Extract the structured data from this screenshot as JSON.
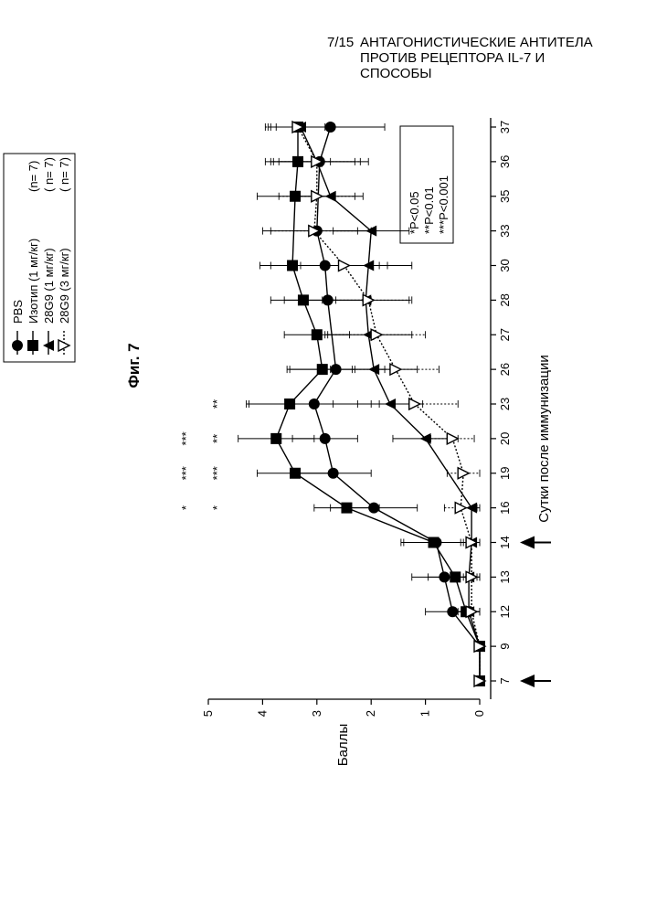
{
  "header": {
    "page_number": "7/15",
    "title": "АНТАГОНИСТИЧЕСКИЕ АНТИТЕЛА ПРОТИВ РЕЦЕПТОРА IL-7 И СПОСОБЫ"
  },
  "chart_data": {
    "type": "line",
    "orientation": "rotated 90° counter-clockwise on page",
    "figure_label": "Фиг. 7",
    "xlabel": "Сутки после иммунизации",
    "ylabel": "Баллы",
    "x_ticks": [
      7,
      9,
      12,
      13,
      14,
      16,
      19,
      20,
      23,
      26,
      27,
      28,
      30,
      33,
      35,
      36,
      37
    ],
    "y_ticks": [
      0,
      1,
      2,
      3,
      4,
      5
    ],
    "ylim": [
      0,
      5
    ],
    "immunization_arrows_days": [
      7,
      14
    ],
    "series": [
      {
        "name": "PBS",
        "n_label": "",
        "marker": "circle-filled",
        "line": "solid",
        "x": [
          7,
          9,
          12,
          13,
          14,
          16,
          19,
          20,
          23,
          26,
          28,
          30,
          33,
          36,
          37
        ],
        "y": [
          0,
          0,
          0.5,
          0.65,
          0.8,
          1.95,
          2.7,
          2.85,
          3.05,
          2.65,
          2.8,
          2.85,
          3.0,
          2.95,
          2.75
        ],
        "err": [
          0,
          0,
          0.5,
          0.6,
          0.6,
          0.8,
          0.7,
          0.6,
          1.2,
          0.9,
          0.8,
          1.0,
          1.0,
          0.9,
          1.0
        ]
      },
      {
        "name": "Изотип (1 мг/кг)",
        "n_label": "(n= 7)",
        "marker": "square-filled",
        "line": "solid",
        "x": [
          7,
          9,
          12,
          13,
          14,
          16,
          19,
          20,
          23,
          26,
          27,
          28,
          30,
          35,
          36,
          37
        ],
        "y": [
          0,
          0,
          0.25,
          0.45,
          0.85,
          2.45,
          3.4,
          3.75,
          3.5,
          2.9,
          3.0,
          3.25,
          3.45,
          3.4,
          3.35,
          3.35
        ],
        "err": [
          0,
          0,
          0.3,
          0.5,
          0.6,
          0.6,
          0.7,
          0.7,
          0.8,
          0.6,
          0.6,
          0.6,
          0.6,
          0.7,
          0.6,
          0.5
        ]
      },
      {
        "name": "28G9 (1 мг/кг)",
        "n_label": "( n= 7)",
        "marker": "triangle-up-filled",
        "line": "solid",
        "x": [
          7,
          9,
          12,
          13,
          14,
          16,
          20,
          23,
          26,
          27,
          28,
          30,
          33,
          35,
          36,
          37
        ],
        "y": [
          0,
          0,
          0.2,
          0.2,
          0.15,
          0.15,
          1.0,
          1.65,
          1.95,
          2.05,
          2.1,
          2.05,
          2.0,
          2.75,
          3.0,
          3.3
        ],
        "err": [
          0,
          0,
          0.2,
          0.2,
          0.2,
          0.2,
          0.6,
          0.6,
          0.8,
          0.8,
          0.8,
          0.8,
          0.7,
          0.6,
          0.7,
          0.6
        ]
      },
      {
        "name": "28G9 (3 мг/кг)",
        "n_label": "( n= 7)",
        "marker": "triangle-down-open",
        "line": "dotted",
        "x": [
          7,
          9,
          12,
          13,
          14,
          16,
          19,
          20,
          23,
          26,
          27,
          28,
          30,
          33,
          35,
          36,
          37
        ],
        "y": [
          0,
          0,
          0.15,
          0.15,
          0.15,
          0.35,
          0.3,
          0.5,
          1.2,
          1.55,
          1.9,
          2.05,
          2.5,
          3.05,
          3.0,
          3.0,
          3.35
        ],
        "err": [
          0,
          0,
          0.15,
          0.15,
          0.15,
          0.3,
          0.3,
          0.4,
          0.8,
          0.8,
          0.9,
          0.8,
          0.8,
          0.8,
          0.7,
          0.8,
          0.6
        ]
      }
    ],
    "significance_annotations": [
      {
        "day": 16,
        "rows": [
          "*",
          "*"
        ]
      },
      {
        "day": 19,
        "rows": [
          "***",
          "***"
        ]
      },
      {
        "day": 20,
        "rows": [
          "***",
          "**"
        ]
      },
      {
        "day": 23,
        "rows": [
          "",
          "**"
        ]
      }
    ],
    "stat_legend": [
      "*P<0.05",
      "**P<0.01",
      "***P<0.001"
    ]
  }
}
